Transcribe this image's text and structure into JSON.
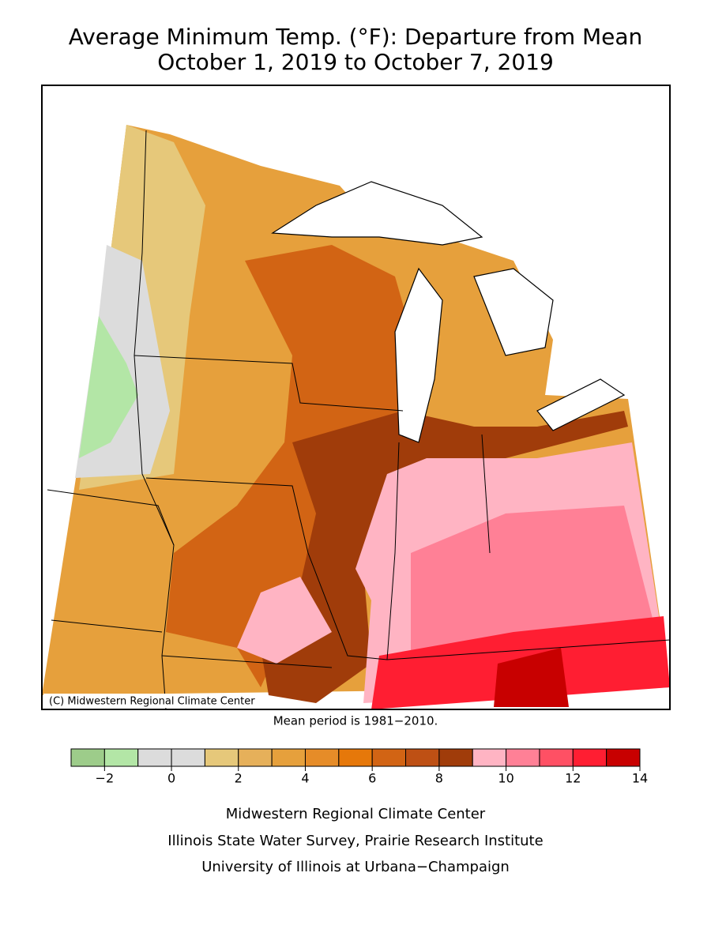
{
  "title": [
    "Average Minimum Temp. (°F): Departure from Mean",
    "October 1, 2019 to October 7, 2019"
  ],
  "map": {
    "credit": "(C) Midwestern Regional Climate Center"
  },
  "note": "Mean period is 1981−2010.",
  "legend": {
    "bins": [
      -3,
      -2,
      -1,
      0,
      1,
      2,
      3,
      4,
      5,
      6,
      7,
      8,
      9,
      10,
      11,
      12,
      13,
      14
    ],
    "colors": [
      "#9dcc8a",
      "#b3e6a6",
      "#dcdcdc",
      "#dcdcdc",
      "#e6c87a",
      "#e6b05a",
      "#e6a03c",
      "#e68c28",
      "#e6780a",
      "#d26414",
      "#be5014",
      "#a03c0a",
      "#ffb4c3",
      "#ff8096",
      "#ff5064",
      "#ff1e32",
      "#c80000"
    ],
    "ticks": [
      {
        "value": -2,
        "label": "−2"
      },
      0,
      2,
      4,
      6,
      8,
      10,
      12,
      14
    ]
  },
  "footer": [
    "Midwestern Regional Climate Center",
    "Illinois State Water Survey, Prairie Research Institute",
    "University of Illinois at Urbana−Champaign"
  ]
}
